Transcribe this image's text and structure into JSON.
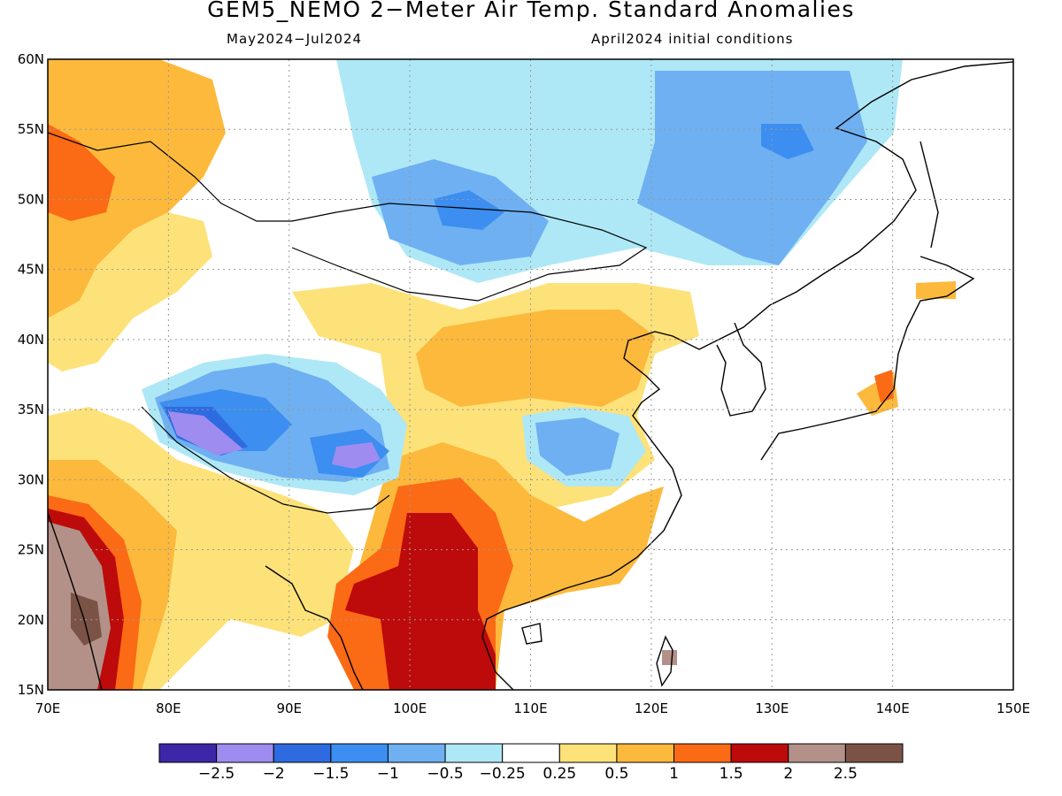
{
  "title": "GEM5_NEMO 2−Meter Air Temp. Standard Anomalies",
  "subtitle_left": "May2024−Jul2024",
  "subtitle_right": "April2024 initial conditions",
  "map": {
    "lon_range": [
      70,
      150
    ],
    "lat_range": [
      15,
      60
    ],
    "lon_ticks": [
      "70E",
      "80E",
      "90E",
      "100E",
      "110E",
      "120E",
      "130E",
      "140E",
      "150E"
    ],
    "lat_ticks": [
      "15N",
      "20N",
      "25N",
      "30N",
      "35N",
      "40N",
      "45N",
      "50N",
      "55N",
      "60N"
    ],
    "gridlines": "dotted",
    "coastlines": true
  },
  "colorbar": {
    "colors": [
      "#3d27a8",
      "#9e8cf0",
      "#2e6be0",
      "#3c8ef0",
      "#6eb0f2",
      "#aee8f6",
      "#ffffff",
      "#fde27a",
      "#fcb93b",
      "#fb6a14",
      "#bd0a0a",
      "#b39188",
      "#7b5346"
    ],
    "labels": [
      "−2.5",
      "−2",
      "−1.5",
      "−1",
      "−0.5",
      "−0.25",
      "0.25",
      "0.5",
      "1",
      "1.5",
      "2",
      "2.5"
    ]
  },
  "anomaly_regions": [
    {
      "name": "west-siberia-warm",
      "level": 9
    },
    {
      "name": "pakistan-india-warm",
      "level": 8
    },
    {
      "name": "india-west-strong-warm",
      "level": 12
    },
    {
      "name": "northern-china-warm",
      "level": 8
    },
    {
      "name": "indochina-strong-warm",
      "level": 11
    },
    {
      "name": "mongolia-cool",
      "level": 5
    },
    {
      "name": "east-siberia-cool",
      "level": 4
    },
    {
      "name": "baikal-cool",
      "level": 3
    },
    {
      "name": "tibet-cool",
      "level": 3
    },
    {
      "name": "tibet-strong-cool",
      "level": 1
    },
    {
      "name": "south-china-cool",
      "level": 4
    }
  ]
}
